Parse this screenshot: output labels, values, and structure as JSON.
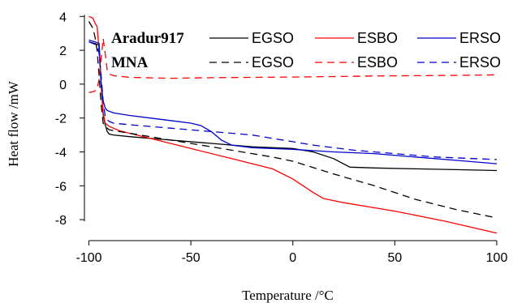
{
  "chart_data": {
    "type": "line",
    "xlabel": "Temperature /°C",
    "ylabel": "Heat flow /mW",
    "xlim": [
      -101,
      100
    ],
    "ylim": [
      -9,
      4.3
    ],
    "x_ticks": [
      -100,
      -50,
      0,
      50,
      100
    ],
    "x_tick_labels": [
      "-100",
      "-50",
      "0",
      "50",
      "100"
    ],
    "y_ticks": [
      4,
      2,
      0,
      -2,
      -4,
      -6,
      -8
    ],
    "y_tick_labels": [
      "4",
      "2",
      "0",
      "-2",
      "-4",
      "-6",
      "-8"
    ],
    "grid": false,
    "legend": {
      "placement": "top-right",
      "groups": [
        {
          "label": "Aradur917",
          "style": "solid",
          "entries": [
            "EGSO",
            "ESBO",
            "ERSO"
          ]
        },
        {
          "label": "MNA",
          "style": "dashed",
          "entries": [
            "EGSO",
            "ESBO",
            "ERSO"
          ]
        }
      ]
    },
    "colors": {
      "EGSO": "#000000",
      "ESBO": "#ff0000",
      "ERSO": "#0000cc"
    },
    "series": [
      {
        "name": "EGSO",
        "group": "Aradur917",
        "style": "solid",
        "color": "#000000",
        "x": [
          -100,
          -97,
          -95,
          -94,
          -93,
          -92,
          -91,
          -90,
          -88,
          -80,
          -60,
          -40,
          -20,
          0,
          10,
          20,
          28,
          40,
          60,
          80,
          100
        ],
        "y": [
          2.5,
          2.4,
          2.3,
          0,
          -1.8,
          -2.4,
          -2.8,
          -2.95,
          -3.0,
          -3.1,
          -3.3,
          -3.5,
          -3.7,
          -3.8,
          -4.0,
          -4.4,
          -4.9,
          -4.95,
          -5.0,
          -5.05,
          -5.1
        ]
      },
      {
        "name": "ESBO",
        "group": "Aradur917",
        "style": "solid",
        "color": "#ff0000",
        "x": [
          -100,
          -98,
          -97,
          -96,
          -95,
          -94,
          -93,
          -92,
          -90,
          -85,
          -70,
          -50,
          -30,
          -10,
          0,
          5,
          10,
          15,
          25,
          50,
          75,
          100
        ],
        "y": [
          4.0,
          3.9,
          3.6,
          3.4,
          2.0,
          0.0,
          -1.7,
          -2.3,
          -2.5,
          -2.75,
          -3.2,
          -3.8,
          -4.4,
          -5.0,
          -5.6,
          -6.0,
          -6.4,
          -6.75,
          -7.0,
          -7.5,
          -8.1,
          -8.8
        ]
      },
      {
        "name": "ERSO",
        "group": "Aradur917",
        "style": "solid",
        "color": "#0000cc",
        "x": [
          -100,
          -97,
          -95,
          -94,
          -93,
          -92,
          -91,
          -90,
          -88,
          -80,
          -70,
          -60,
          -50,
          -45,
          -40,
          -35,
          -30,
          -20,
          0,
          20,
          40,
          60,
          80,
          100
        ],
        "y": [
          2.6,
          2.5,
          2.4,
          0,
          -1.0,
          -1.4,
          -1.55,
          -1.6,
          -1.7,
          -1.85,
          -2.0,
          -2.15,
          -2.3,
          -2.45,
          -2.8,
          -3.3,
          -3.6,
          -3.75,
          -3.85,
          -4.0,
          -4.1,
          -4.3,
          -4.5,
          -4.7
        ]
      },
      {
        "name": "EGSO",
        "group": "MNA",
        "style": "dashed",
        "color": "#000000",
        "x": [
          -100,
          -98,
          -97,
          -96,
          -95,
          -94,
          -93,
          -92,
          -91,
          -90,
          -85,
          -70,
          -50,
          -30,
          -10,
          0,
          20,
          40,
          60,
          80,
          100
        ],
        "y": [
          3.7,
          3.3,
          2.8,
          2.0,
          0.5,
          -1.2,
          -2.3,
          -2.5,
          -2.6,
          -2.7,
          -2.8,
          -3.1,
          -3.5,
          -3.9,
          -4.3,
          -4.55,
          -5.3,
          -6.0,
          -6.8,
          -7.4,
          -7.9
        ]
      },
      {
        "name": "ESBO",
        "group": "MNA",
        "style": "dashed",
        "color": "#ff0000",
        "x": [
          -100,
          -98,
          -97,
          -96,
          -95,
          -94,
          -93,
          -92,
          -91,
          -90,
          -88,
          -80,
          -60,
          -40,
          -20,
          0,
          20,
          40,
          60,
          80,
          100
        ],
        "y": [
          -0.5,
          -0.45,
          -0.4,
          -0.3,
          0.3,
          1.5,
          2.7,
          1.8,
          0.8,
          0.6,
          0.5,
          0.4,
          0.35,
          0.38,
          0.4,
          0.42,
          0.45,
          0.48,
          0.5,
          0.52,
          0.55
        ]
      },
      {
        "name": "ERSO",
        "group": "MNA",
        "style": "dashed",
        "color": "#0000cc",
        "x": [
          -100,
          -98,
          -96,
          -95,
          -94,
          -93,
          -92,
          -91,
          -90,
          -88,
          -80,
          -60,
          -40,
          -20,
          -10,
          0,
          10,
          30,
          50,
          70,
          100
        ],
        "y": [
          2.5,
          2.4,
          2.3,
          1.8,
          0.5,
          -1.0,
          -1.9,
          -2.1,
          -2.2,
          -2.3,
          -2.4,
          -2.6,
          -2.8,
          -3.0,
          -3.2,
          -3.4,
          -3.6,
          -3.9,
          -4.1,
          -4.3,
          -4.45
        ]
      }
    ]
  }
}
